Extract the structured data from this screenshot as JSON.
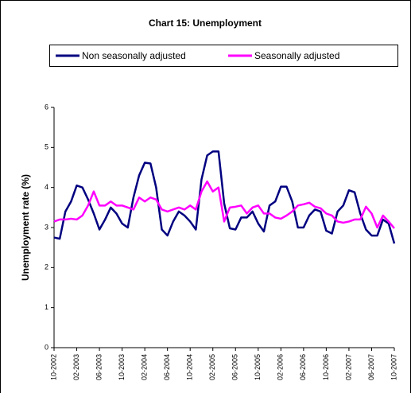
{
  "chart_data": {
    "type": "line",
    "title": "Chart 15: Unemployment",
    "y_label": "Unemployment rate (%)",
    "categories": [
      "10-2002",
      null,
      null,
      null,
      "02-2003",
      null,
      null,
      null,
      "06-2003",
      null,
      null,
      null,
      "10-2003",
      null,
      null,
      null,
      "02-2004",
      null,
      null,
      null,
      "06-2004",
      null,
      null,
      null,
      "10-2004",
      null,
      null,
      null,
      "02-2005",
      null,
      null,
      null,
      "06-2005",
      null,
      null,
      null,
      "10-2005",
      null,
      null,
      null,
      "02-2006",
      null,
      null,
      null,
      "06-2006",
      null,
      null,
      null,
      "10-2006",
      null,
      null,
      null,
      "02-2007",
      null,
      null,
      null,
      "06-2007",
      null,
      null,
      null,
      "10-2007"
    ],
    "series": [
      {
        "name": "Non seasonally adjusted",
        "color": "#000080",
        "values": [
          2.75,
          2.72,
          3.4,
          3.65,
          4.05,
          4.0,
          3.7,
          3.35,
          2.95,
          3.2,
          3.5,
          3.35,
          3.1,
          3.0,
          3.75,
          4.3,
          4.62,
          4.6,
          4.0,
          2.95,
          2.8,
          3.15,
          3.4,
          3.3,
          3.15,
          2.95,
          4.2,
          4.8,
          4.9,
          4.9,
          3.6,
          2.98,
          2.95,
          3.25,
          3.25,
          3.4,
          3.1,
          2.9,
          3.55,
          3.65,
          4.02,
          4.02,
          3.65,
          3.0,
          3.0,
          3.3,
          3.45,
          3.4,
          2.92,
          2.85,
          3.4,
          3.55,
          3.93,
          3.88,
          3.35,
          2.95,
          2.8,
          2.8,
          3.2,
          3.1,
          2.6
        ]
      },
      {
        "name": "Seasonally adjusted",
        "color": "#ff00ff",
        "values": [
          3.15,
          3.2,
          3.2,
          3.22,
          3.2,
          3.3,
          3.55,
          3.9,
          3.55,
          3.55,
          3.65,
          3.55,
          3.55,
          3.5,
          3.45,
          3.75,
          3.65,
          3.75,
          3.7,
          3.45,
          3.4,
          3.45,
          3.5,
          3.45,
          3.55,
          3.45,
          3.9,
          4.15,
          3.9,
          4.0,
          3.15,
          3.5,
          3.52,
          3.55,
          3.35,
          3.5,
          3.55,
          3.35,
          3.35,
          3.25,
          3.22,
          3.3,
          3.4,
          3.55,
          3.58,
          3.62,
          3.52,
          3.48,
          3.35,
          3.3,
          3.15,
          3.12,
          3.15,
          3.2,
          3.2,
          3.52,
          3.35,
          3.0,
          3.3,
          3.15,
          2.98
        ]
      }
    ],
    "ylim": [
      0,
      6
    ],
    "yticks": [
      0,
      1,
      2,
      3,
      4,
      5,
      6
    ],
    "grid": false,
    "legend": "top"
  }
}
